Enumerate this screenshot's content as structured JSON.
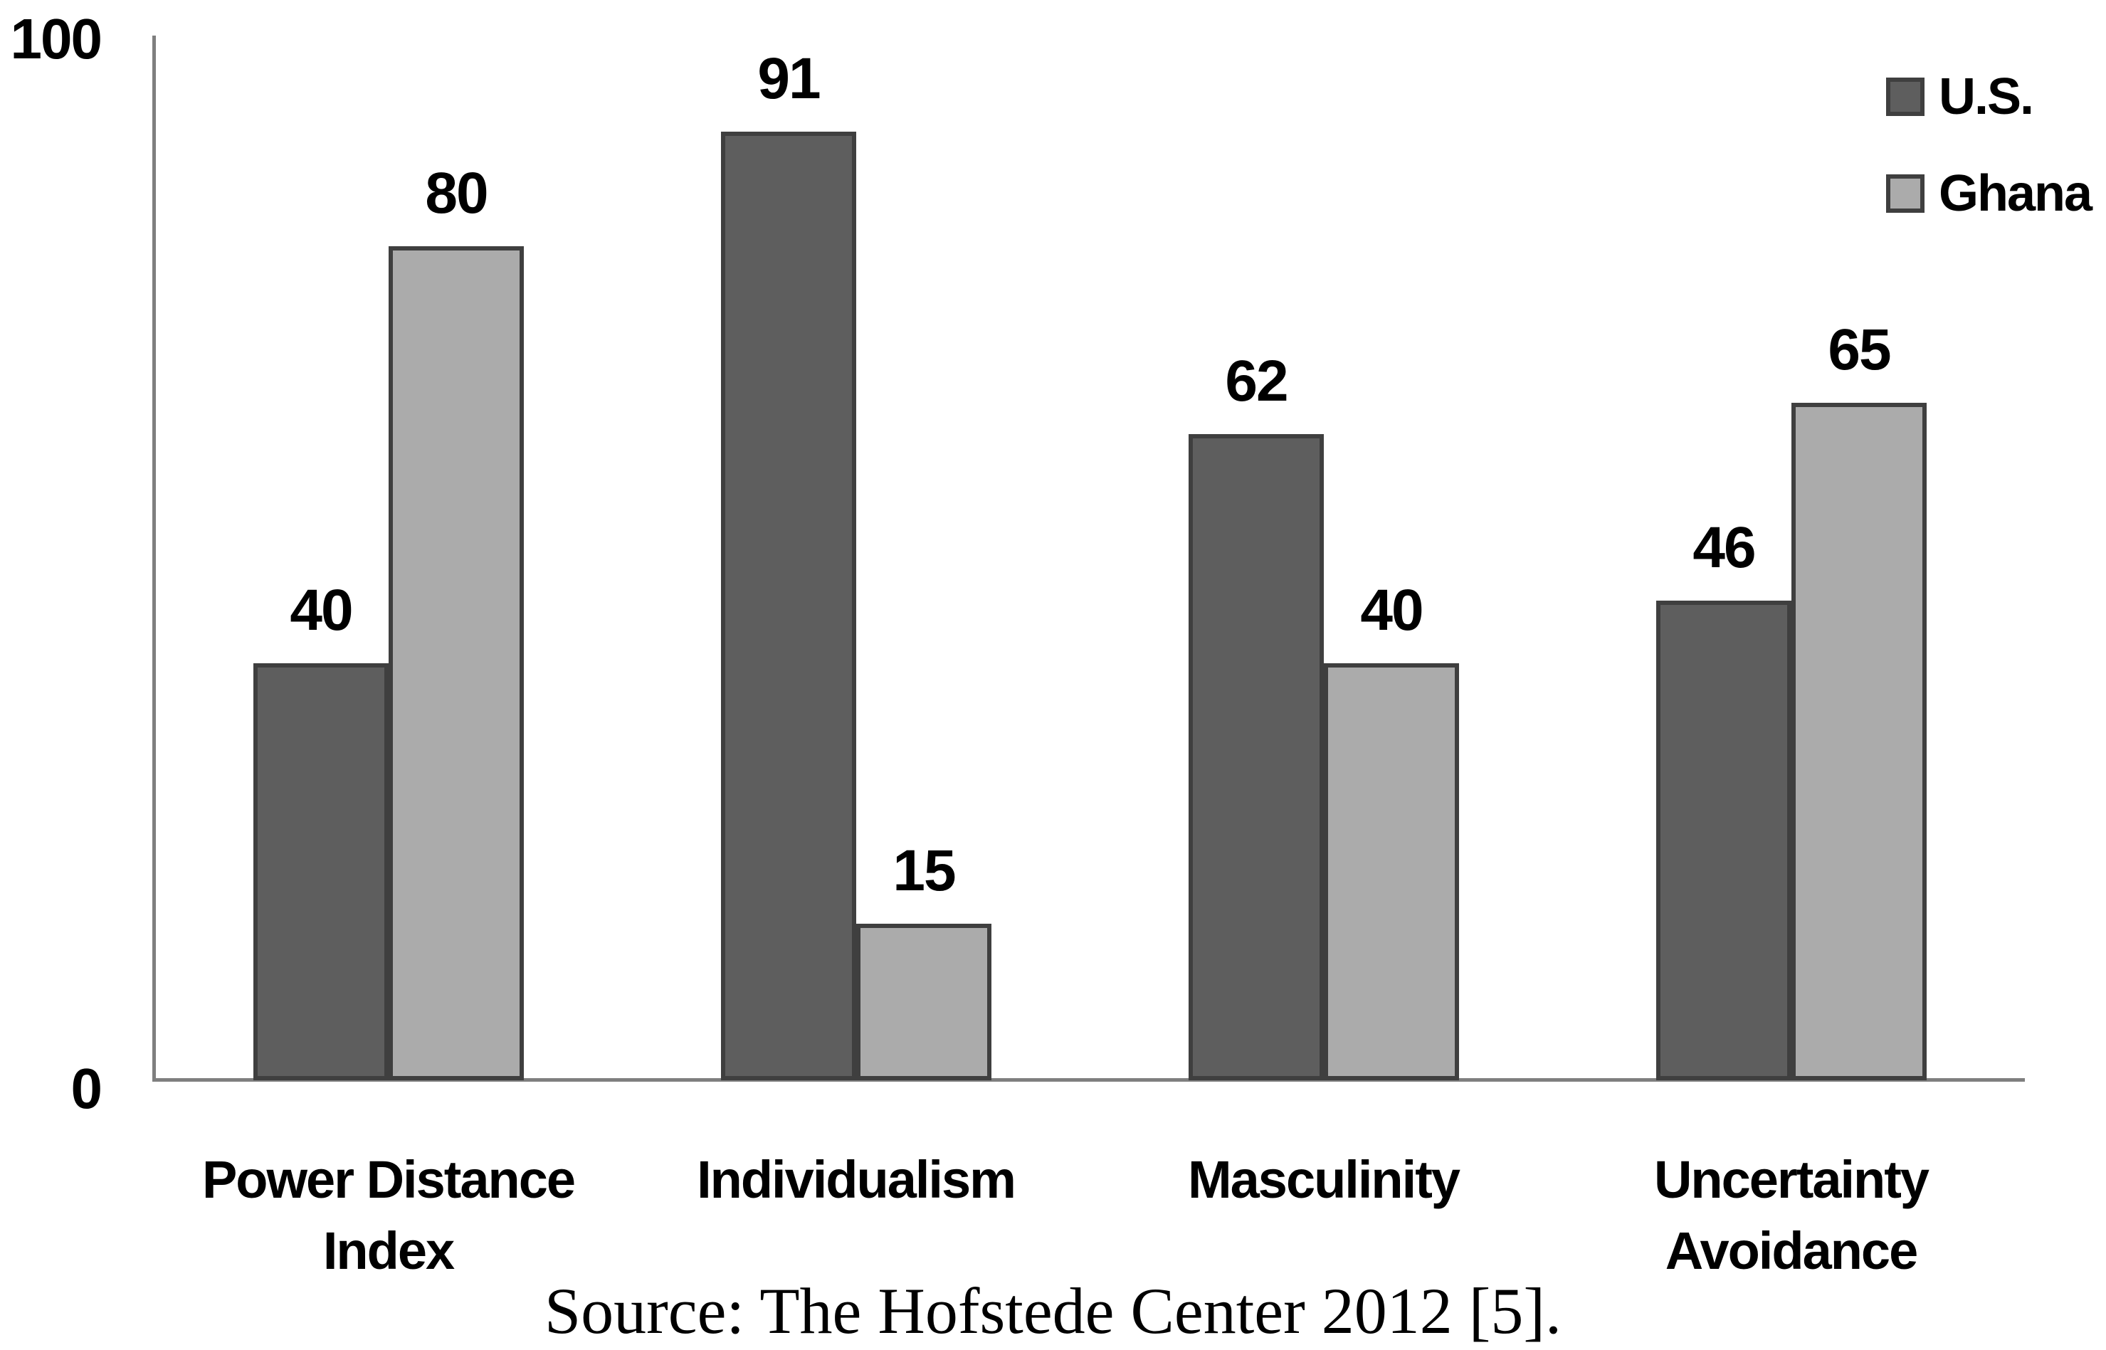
{
  "chart_data": {
    "type": "bar",
    "title": "",
    "xlabel": "",
    "ylabel": "",
    "categories": [
      "Power Distance Index",
      "Individualism",
      "Masculinity",
      "Uncertainty Avoidance"
    ],
    "category_label_lines": [
      [
        "Power Distance",
        "Index"
      ],
      [
        "Individualism"
      ],
      [
        "Masculinity"
      ],
      [
        "Uncertainty",
        "Avoidance"
      ]
    ],
    "series": [
      {
        "name": "U.S.",
        "values": [
          40,
          91,
          62,
          46
        ],
        "color": "#5e5e5e",
        "border_color": "#3f3f3f"
      },
      {
        "name": "Ghana",
        "values": [
          80,
          15,
          40,
          65
        ],
        "color": "#ababab",
        "border_color": "#3f3f3f"
      }
    ],
    "ylim": [
      0,
      100
    ],
    "y_axis": {
      "max_label": "100",
      "min_label": "0"
    },
    "grid": false,
    "value_labels_shown": true,
    "legend_position": "top-right",
    "axis_color": "#7f7f7f",
    "text_color": "#000000",
    "background_color": "#ffffff",
    "source_note": "Source: The Hofstede Center 2012 [5]."
  }
}
